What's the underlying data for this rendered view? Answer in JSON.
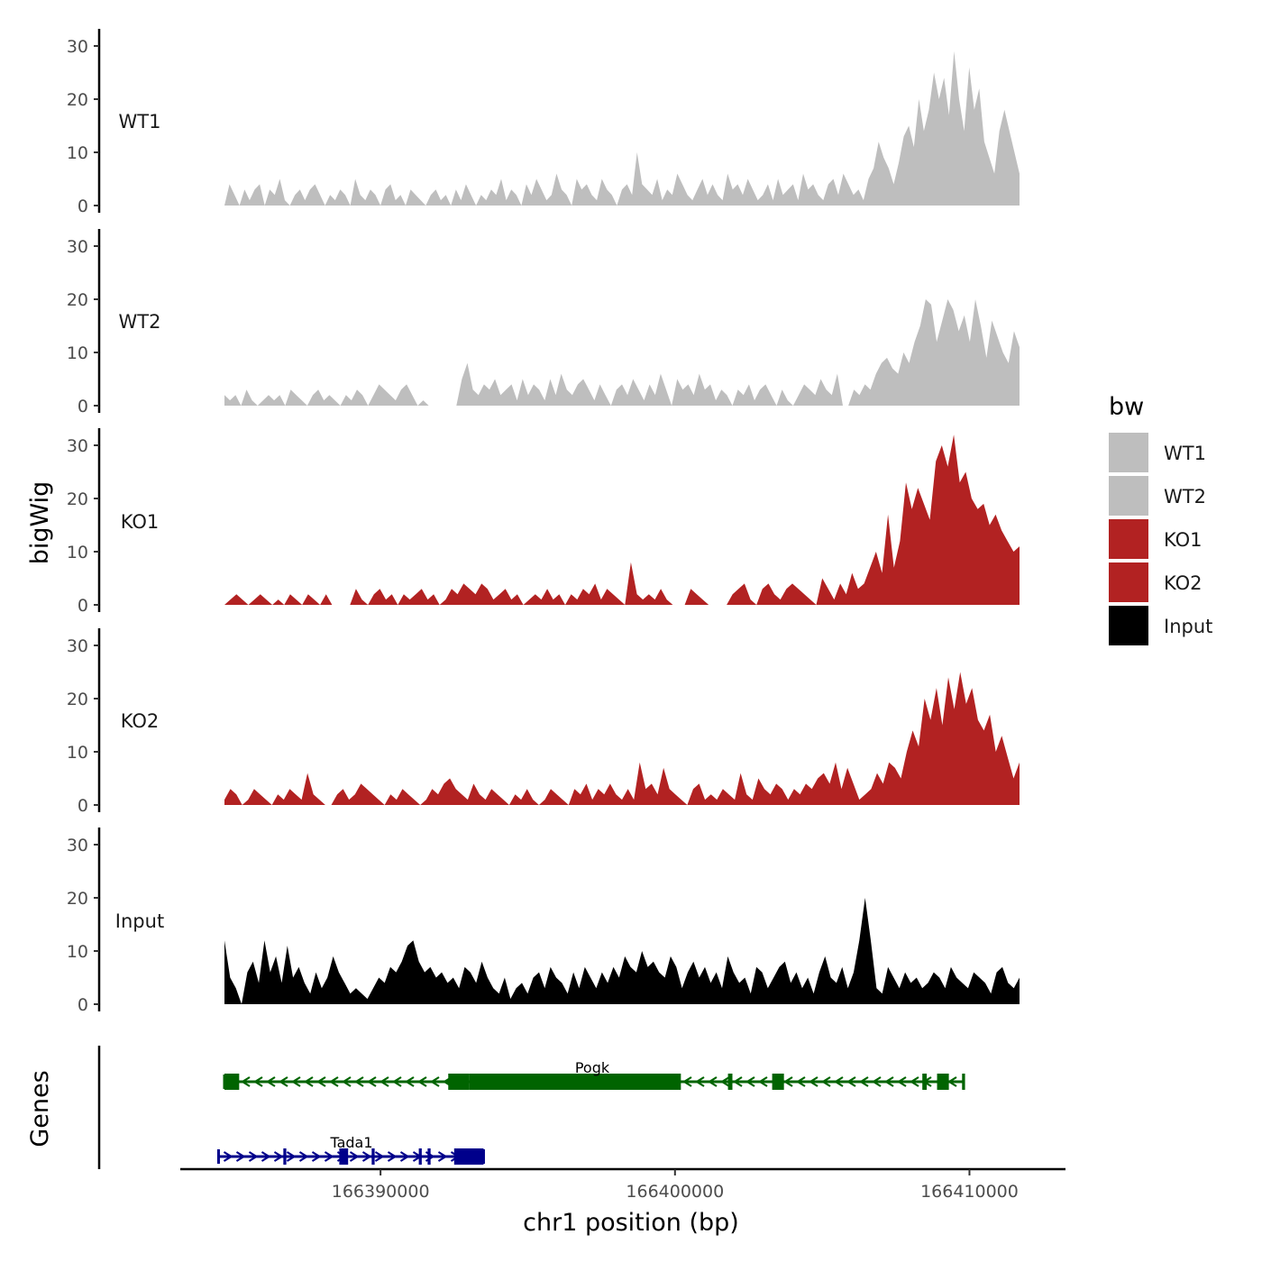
{
  "chart_data": {
    "type": "area",
    "ylabel": "bigWig",
    "genes_label": "Genes",
    "xlabel": "chr1 position (bp)",
    "xlim": [
      166383200,
      166413200
    ],
    "data_range": [
      166384700,
      166411700
    ],
    "ylim": [
      0,
      33
    ],
    "yticks": [
      0,
      10,
      20,
      30
    ],
    "xticks": [
      166390000,
      166400000,
      166410000
    ],
    "xtick_labels": [
      "166390000",
      "166400000",
      "166410000"
    ],
    "legend": {
      "title": "bw",
      "entries": [
        {
          "label": "WT1",
          "color": "#bebebe"
        },
        {
          "label": "WT2",
          "color": "#bebebe"
        },
        {
          "label": "KO1",
          "color": "#b22222"
        },
        {
          "label": "KO2",
          "color": "#b22222"
        },
        {
          "label": "Input",
          "color": "#000000"
        }
      ]
    },
    "series": [
      {
        "name": "WT1",
        "color": "#bebebe",
        "values": [
          0,
          4,
          2,
          0,
          3,
          1,
          3,
          4,
          0,
          3,
          2,
          5,
          1,
          0,
          2,
          3,
          1,
          3,
          4,
          2,
          0,
          2,
          1,
          3,
          2,
          0,
          5,
          2,
          1,
          3,
          2,
          0,
          3,
          4,
          1,
          2,
          0,
          3,
          2,
          1,
          0,
          2,
          3,
          1,
          2,
          0,
          3,
          1,
          4,
          2,
          0,
          2,
          1,
          3,
          2,
          5,
          1,
          3,
          2,
          0,
          4,
          2,
          5,
          3,
          1,
          2,
          6,
          3,
          2,
          0,
          5,
          3,
          4,
          2,
          1,
          5,
          3,
          2,
          0,
          3,
          4,
          2,
          10,
          4,
          3,
          2,
          5,
          1,
          3,
          2,
          6,
          4,
          2,
          1,
          3,
          5,
          2,
          4,
          2,
          1,
          6,
          3,
          4,
          2,
          5,
          3,
          1,
          2,
          4,
          1,
          5,
          2,
          3,
          4,
          1,
          6,
          3,
          4,
          2,
          1,
          4,
          5,
          2,
          6,
          4,
          2,
          3,
          1,
          5,
          7,
          12,
          9,
          7,
          4,
          8,
          13,
          15,
          11,
          20,
          14,
          18,
          25,
          20,
          24,
          17,
          29,
          20,
          14,
          26,
          18,
          22,
          12,
          9,
          6,
          14,
          18,
          14,
          10,
          6
        ]
      },
      {
        "name": "WT2",
        "color": "#bebebe",
        "values": [
          2,
          1,
          2,
          0,
          3,
          1,
          0,
          1,
          2,
          1,
          2,
          0,
          3,
          2,
          1,
          0,
          2,
          3,
          1,
          2,
          1,
          0,
          2,
          1,
          3,
          2,
          0,
          2,
          4,
          3,
          2,
          1,
          3,
          4,
          2,
          0,
          1,
          0,
          0,
          0,
          0,
          0,
          0,
          5,
          8,
          3,
          2,
          4,
          3,
          5,
          2,
          3,
          4,
          1,
          5,
          2,
          4,
          3,
          1,
          5,
          2,
          6,
          3,
          2,
          4,
          5,
          3,
          1,
          4,
          2,
          0,
          3,
          4,
          2,
          5,
          3,
          1,
          4,
          2,
          6,
          3,
          0,
          5,
          3,
          4,
          2,
          6,
          3,
          4,
          1,
          3,
          2,
          0,
          3,
          2,
          4,
          1,
          3,
          4,
          2,
          0,
          3,
          1,
          0,
          2,
          4,
          3,
          2,
          5,
          3,
          2,
          6,
          0,
          0,
          3,
          2,
          4,
          3,
          6,
          8,
          9,
          7,
          6,
          10,
          8,
          12,
          15,
          20,
          19,
          12,
          16,
          20,
          18,
          14,
          17,
          12,
          20,
          15,
          9,
          16,
          13,
          10,
          8,
          14,
          11
        ]
      },
      {
        "name": "KO1",
        "color": "#b22222",
        "values": [
          0,
          1,
          2,
          1,
          0,
          1,
          2,
          1,
          0,
          1,
          0,
          2,
          1,
          0,
          2,
          1,
          0,
          2,
          0,
          0,
          0,
          0,
          3,
          1,
          0,
          2,
          3,
          1,
          2,
          0,
          2,
          1,
          2,
          3,
          1,
          2,
          0,
          1,
          3,
          2,
          4,
          3,
          2,
          4,
          3,
          1,
          2,
          3,
          1,
          2,
          0,
          1,
          2,
          1,
          3,
          1,
          2,
          0,
          2,
          1,
          3,
          2,
          4,
          1,
          3,
          2,
          1,
          0,
          8,
          2,
          1,
          2,
          1,
          3,
          1,
          0,
          0,
          0,
          3,
          2,
          1,
          0,
          0,
          0,
          0,
          2,
          3,
          4,
          1,
          0,
          3,
          4,
          2,
          1,
          3,
          4,
          3,
          2,
          1,
          0,
          5,
          3,
          1,
          4,
          2,
          6,
          3,
          4,
          7,
          10,
          6,
          17,
          7,
          12,
          23,
          18,
          22,
          19,
          16,
          27,
          30,
          26,
          32,
          23,
          25,
          20,
          18,
          19,
          15,
          17,
          14,
          12,
          10,
          11
        ]
      },
      {
        "name": "KO2",
        "color": "#b22222",
        "values": [
          1,
          3,
          2,
          0,
          1,
          3,
          2,
          1,
          0,
          2,
          1,
          3,
          2,
          1,
          6,
          2,
          1,
          0,
          0,
          2,
          3,
          1,
          2,
          4,
          3,
          2,
          1,
          0,
          2,
          1,
          3,
          2,
          1,
          0,
          1,
          3,
          2,
          4,
          5,
          3,
          2,
          1,
          4,
          2,
          1,
          3,
          2,
          1,
          0,
          2,
          1,
          3,
          1,
          0,
          1,
          3,
          2,
          1,
          0,
          3,
          2,
          4,
          1,
          3,
          2,
          4,
          2,
          1,
          3,
          1,
          8,
          3,
          4,
          2,
          7,
          3,
          2,
          1,
          0,
          3,
          4,
          1,
          2,
          1,
          3,
          2,
          1,
          6,
          2,
          1,
          5,
          3,
          2,
          4,
          3,
          1,
          3,
          2,
          4,
          3,
          5,
          6,
          4,
          8,
          3,
          7,
          4,
          1,
          2,
          3,
          6,
          4,
          8,
          7,
          5,
          10,
          14,
          11,
          20,
          16,
          22,
          15,
          24,
          18,
          25,
          19,
          22,
          16,
          14,
          17,
          10,
          13,
          9,
          5,
          8
        ]
      },
      {
        "name": "Input",
        "color": "#000000",
        "values": [
          12,
          5,
          3,
          0,
          6,
          8,
          4,
          12,
          6,
          9,
          4,
          11,
          5,
          7,
          4,
          2,
          6,
          3,
          5,
          9,
          6,
          4,
          2,
          3,
          2,
          1,
          3,
          5,
          4,
          7,
          6,
          8,
          11,
          12,
          8,
          6,
          7,
          5,
          6,
          4,
          5,
          3,
          7,
          6,
          4,
          8,
          5,
          3,
          2,
          5,
          1,
          3,
          4,
          2,
          5,
          6,
          3,
          7,
          5,
          4,
          2,
          6,
          3,
          7,
          5,
          3,
          6,
          4,
          7,
          5,
          9,
          7,
          6,
          10,
          7,
          8,
          6,
          5,
          9,
          7,
          3,
          6,
          8,
          5,
          7,
          4,
          6,
          3,
          9,
          6,
          4,
          5,
          2,
          7,
          6,
          3,
          5,
          7,
          8,
          4,
          6,
          3,
          5,
          2,
          6,
          9,
          5,
          4,
          7,
          3,
          6,
          12,
          20,
          12,
          3,
          2,
          7,
          5,
          3,
          6,
          4,
          5,
          3,
          4,
          6,
          5,
          3,
          7,
          5,
          4,
          3,
          6,
          5,
          4,
          2,
          6,
          7,
          4,
          3,
          5
        ]
      }
    ],
    "genes": [
      {
        "name": "Pogk",
        "color": "#006400",
        "start": 166384700,
        "end": 166409800,
        "strand": "-",
        "row": 0,
        "exons": [
          [
            166384700,
            166385200
          ],
          [
            166392300,
            166393000
          ],
          [
            166393000,
            166400200
          ],
          [
            166401800,
            166401950
          ],
          [
            166403300,
            166403700
          ],
          [
            166408400,
            166408550
          ],
          [
            166408900,
            166409300
          ],
          [
            166409750,
            166409850
          ]
        ]
      },
      {
        "name": "Tada1",
        "color": "#00008b",
        "start": 166384500,
        "end": 166393500,
        "strand": "+",
        "row": 1,
        "exons": [
          [
            166386700,
            166386800
          ],
          [
            166388600,
            166388900
          ],
          [
            166389700,
            166389800
          ],
          [
            166391300,
            166391400
          ],
          [
            166391600,
            166391700
          ],
          [
            166392500,
            166393500
          ]
        ]
      }
    ]
  }
}
